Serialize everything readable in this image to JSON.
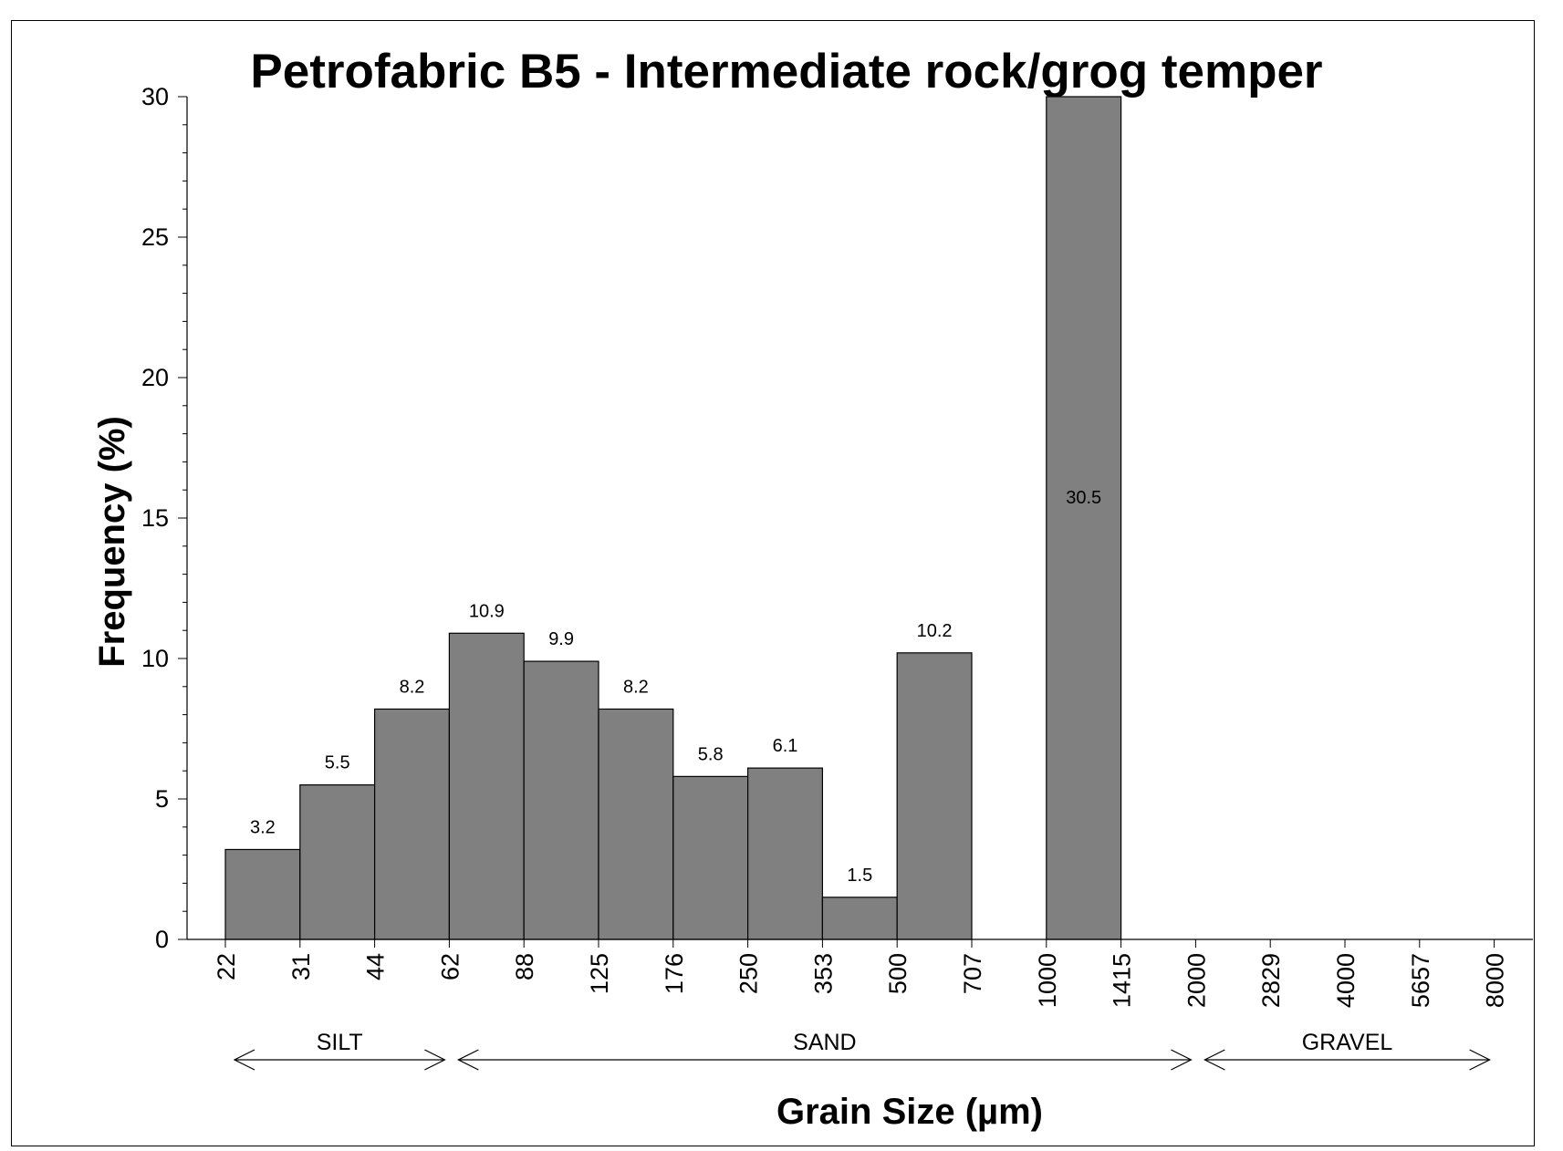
{
  "chart_data": {
    "type": "bar",
    "title": "Petrofabric B5 - Intermediate rock/grog temper",
    "xlabel": "Grain Size (µm)",
    "ylabel": "Frequency (%)",
    "ylim": [
      0,
      30
    ],
    "yticks": [
      "0",
      "5",
      "10",
      "15",
      "20",
      "25",
      "30"
    ],
    "x_tick_labels": [
      "22",
      "31",
      "44",
      "62",
      "88",
      "125",
      "176",
      "250",
      "353",
      "500",
      "707",
      "1000",
      "1415",
      "2000",
      "2829",
      "4000",
      "5657",
      "8000"
    ],
    "bins": [
      {
        "from": "22",
        "to": "31",
        "value": 3.2,
        "label": "3.2"
      },
      {
        "from": "31",
        "to": "44",
        "value": 5.5,
        "label": "5.5"
      },
      {
        "from": "44",
        "to": "62",
        "value": 8.2,
        "label": "8.2"
      },
      {
        "from": "62",
        "to": "88",
        "value": 10.9,
        "label": "10.9"
      },
      {
        "from": "88",
        "to": "125",
        "value": 9.9,
        "label": "9.9"
      },
      {
        "from": "125",
        "to": "176",
        "value": 8.2,
        "label": "8.2"
      },
      {
        "from": "176",
        "to": "250",
        "value": 5.8,
        "label": "5.8"
      },
      {
        "from": "250",
        "to": "353",
        "value": 6.1,
        "label": "6.1"
      },
      {
        "from": "353",
        "to": "500",
        "value": 1.5,
        "label": "1.5"
      },
      {
        "from": "500",
        "to": "707",
        "value": 10.2,
        "label": "10.2"
      },
      {
        "from": "1000",
        "to": "1415",
        "value": 30.5,
        "label": "30.5"
      }
    ],
    "size_classes": [
      {
        "label": "SILT",
        "from": "22",
        "to": "62"
      },
      {
        "label": "SAND",
        "from": "62",
        "to": "2000"
      },
      {
        "label": "GRAVEL",
        "from": "2000",
        "to": "8000"
      }
    ],
    "grid": false,
    "legend": "none",
    "colors": {
      "bar_fill": "#808080",
      "bar_stroke": "#000000",
      "axis": "#000000"
    }
  }
}
